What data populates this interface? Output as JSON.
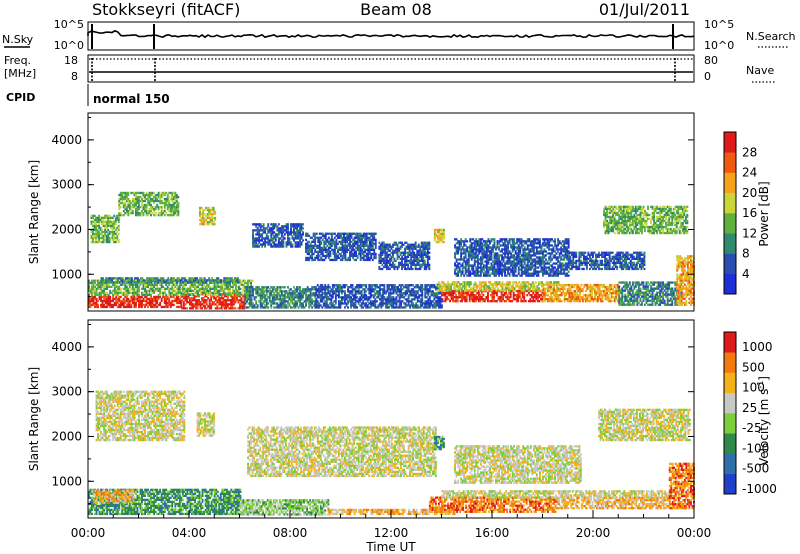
{
  "header": {
    "station": "Stokkseyri (fitACF)",
    "beam": "Beam 08",
    "date": "01/Jul/2011"
  },
  "aux_panels": {
    "nsky": {
      "label": "N.Sky",
      "left_ticks": [
        "10^5",
        "10^0"
      ],
      "right_label": "N.Search",
      "right_ticks": [
        "10^5",
        "10^0"
      ]
    },
    "freq": {
      "label_line1": "Freq.",
      "label_line2": "[MHz]",
      "left_ticks": [
        "18",
        "8"
      ],
      "right_label": "Nave",
      "right_ticks": [
        "80",
        "0"
      ]
    },
    "cpid": {
      "label": "CPID",
      "value": "normal 150"
    }
  },
  "chart_data": [
    {
      "type": "heatmap",
      "name": "power",
      "ylabel": "Slant Range [km]",
      "ylim": [
        180,
        4600
      ],
      "yticks": [
        "1000",
        "2000",
        "3000",
        "4000"
      ],
      "xlim": [
        0,
        24
      ],
      "colorbar": {
        "label": "Power [dB]",
        "ticks": [
          "4",
          "8",
          "12",
          "16",
          "20",
          "24",
          "28"
        ],
        "colors": [
          "#1f2fd6",
          "#2a4fb0",
          "#2f8a6e",
          "#5fb03c",
          "#c8d63a",
          "#f6a21a",
          "#ef5a10",
          "#e01b1b"
        ]
      },
      "regions": [
        {
          "t": [
            0.0,
            3.7
          ],
          "r": [
            250,
            520
          ],
          "level": 7
        },
        {
          "t": [
            3.7,
            6.2
          ],
          "r": [
            220,
            560
          ],
          "level": 7
        },
        {
          "t": [
            0.0,
            6.5
          ],
          "r": [
            520,
            860
          ],
          "level": 3
        },
        {
          "t": [
            0.5,
            6.0
          ],
          "r": [
            800,
            900
          ],
          "level": 2
        },
        {
          "t": [
            6.2,
            9.0
          ],
          "r": [
            240,
            700
          ],
          "level": 2
        },
        {
          "t": [
            9.0,
            14.0
          ],
          "r": [
            240,
            760
          ],
          "level": 1
        },
        {
          "t": [
            14.0,
            18.0
          ],
          "r": [
            380,
            620
          ],
          "level": 7
        },
        {
          "t": [
            13.8,
            18.6
          ],
          "r": [
            620,
            820
          ],
          "level": 4
        },
        {
          "t": [
            18.0,
            21.0
          ],
          "r": [
            380,
            760
          ],
          "level": 5
        },
        {
          "t": [
            21.0,
            23.5
          ],
          "r": [
            300,
            820
          ],
          "level": 2
        },
        {
          "t": [
            23.3,
            24.0
          ],
          "r": [
            300,
            1400
          ],
          "level": 5
        },
        {
          "t": [
            0.1,
            1.2
          ],
          "r": [
            1700,
            2300
          ],
          "level": 3
        },
        {
          "t": [
            1.2,
            3.6
          ],
          "r": [
            2300,
            2800
          ],
          "level": 3
        },
        {
          "t": [
            4.4,
            5.0
          ],
          "r": [
            2100,
            2500
          ],
          "level": 4
        },
        {
          "t": [
            6.5,
            8.5
          ],
          "r": [
            1600,
            2100
          ],
          "level": 1
        },
        {
          "t": [
            8.6,
            11.4
          ],
          "r": [
            1300,
            1900
          ],
          "level": 1
        },
        {
          "t": [
            11.5,
            13.5
          ],
          "r": [
            1100,
            1700
          ],
          "level": 1
        },
        {
          "t": [
            13.7,
            14.1
          ],
          "r": [
            1700,
            2000
          ],
          "level": 4
        },
        {
          "t": [
            14.5,
            19.0
          ],
          "r": [
            950,
            1800
          ],
          "level": 1
        },
        {
          "t": [
            20.4,
            23.7
          ],
          "r": [
            1900,
            2500
          ],
          "level": 3
        },
        {
          "t": [
            19.0,
            22.0
          ],
          "r": [
            1100,
            1500
          ],
          "level": 1
        }
      ]
    },
    {
      "type": "heatmap",
      "name": "velocity",
      "ylabel": "Slant Range [km]",
      "ylim": [
        180,
        4600
      ],
      "yticks": [
        "1000",
        "2000",
        "3000",
        "4000"
      ],
      "xlabel": "Time UT",
      "xticks": [
        "00:00",
        "04:00",
        "08:00",
        "12:00",
        "16:00",
        "20:00",
        "00:00"
      ],
      "xlim": [
        0,
        24
      ],
      "colorbar": {
        "label": "Velocity [m s^-1]",
        "ticks": [
          "1000",
          "500",
          "100",
          "25",
          "-25",
          "-100",
          "-500",
          "-1000"
        ],
        "colors": [
          "#1f40c8",
          "#2f6fa8",
          "#2f8a4a",
          "#7ccf3a",
          "#c8c8c4",
          "#f3b21a",
          "#f27a10",
          "#e01b1b"
        ]
      },
      "regions": [
        {
          "t": [
            0.0,
            6.0
          ],
          "r": [
            250,
            800
          ],
          "level": 2
        },
        {
          "t": [
            0.2,
            1.8
          ],
          "r": [
            500,
            800
          ],
          "level": 5
        },
        {
          "t": [
            6.0,
            9.5
          ],
          "r": [
            240,
            600
          ],
          "level": 3
        },
        {
          "t": [
            9.5,
            14.5
          ],
          "r": [
            250,
            380
          ],
          "level": 5
        },
        {
          "t": [
            13.5,
            18.5
          ],
          "r": [
            300,
            620
          ],
          "level": 6
        },
        {
          "t": [
            14.0,
            23.0
          ],
          "r": [
            620,
            760
          ],
          "level": 4
        },
        {
          "t": [
            18.5,
            23.0
          ],
          "r": [
            380,
            620
          ],
          "level": 5
        },
        {
          "t": [
            23.0,
            24.0
          ],
          "r": [
            380,
            1400
          ],
          "level": 6
        },
        {
          "t": [
            0.3,
            3.8
          ],
          "r": [
            1900,
            3000
          ],
          "level": 4
        },
        {
          "t": [
            4.3,
            5.0
          ],
          "r": [
            2000,
            2500
          ],
          "level": 4
        },
        {
          "t": [
            6.3,
            13.8
          ],
          "r": [
            1100,
            2200
          ],
          "level": 4
        },
        {
          "t": [
            13.7,
            14.1
          ],
          "r": [
            1700,
            2000
          ],
          "level": 2
        },
        {
          "t": [
            14.5,
            19.5
          ],
          "r": [
            950,
            1800
          ],
          "level": 4
        },
        {
          "t": [
            20.2,
            23.8
          ],
          "r": [
            1900,
            2600
          ],
          "level": 4
        }
      ]
    }
  ]
}
